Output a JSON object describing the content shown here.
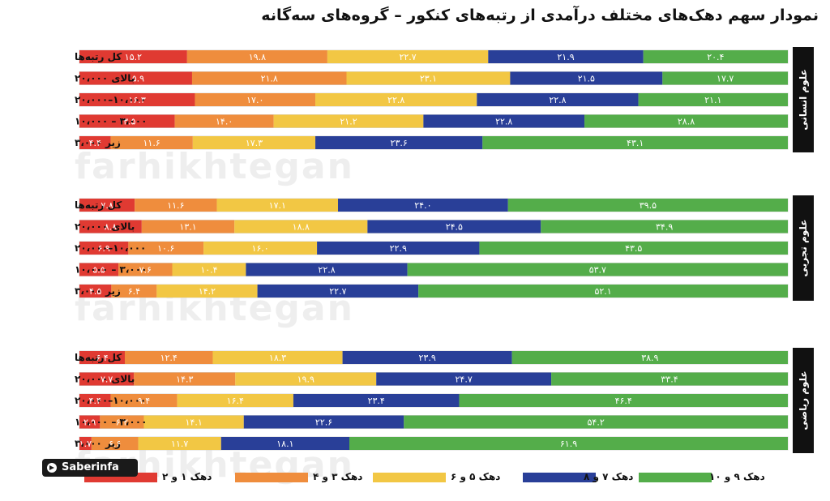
{
  "title": "نمودار سهم دهک‌های مختلف درآمدی از رتبه‌های کنکور – گروه‌های سه‌گانه",
  "brand": "Saberinfa",
  "watermark_text": "farhikhtegan",
  "colors": [
    "#e03a32",
    "#ef8d3d",
    "#f2c744",
    "#293f98",
    "#54ad4a"
  ],
  "chart_data": {
    "type": "bar",
    "stacked": true,
    "orientation": "horizontal",
    "xlim": [
      0,
      100
    ],
    "legend": {
      "placement": "bottom",
      "entries": [
        "دهک ۱ و ۲",
        "دهک ۳ و ۴",
        "دهک ۵ و ۶",
        "دهک ۷ و ۸",
        "دهک ۹ و ۱۰"
      ]
    },
    "groups": [
      {
        "name": "علوم انسانی",
        "rows": [
          {
            "label": "کل رتبه‌ها",
            "values": [
              15.2,
              19.8,
              22.7,
              21.9,
              20.4
            ],
            "labels": [
              "۱۵.۲",
              "۱۹.۸",
              "۲۲.۷",
              "۲۱.۹",
              "۲۰.۴"
            ]
          },
          {
            "label": "بالای ۲۰،۰۰۰",
            "values": [
              15.9,
              21.8,
              23.1,
              21.5,
              17.7
            ],
            "labels": [
              "۱۵.۹",
              "۲۱.۸",
              "۲۳.۱",
              "۲۱.۵",
              "۱۷.۷"
            ]
          },
          {
            "label": "۱۰،۰۰۰–۲۰،۰۰۰",
            "values": [
              16.3,
              17.0,
              22.8,
              22.8,
              21.1
            ],
            "labels": [
              "۱۶.۳",
              "۱۷.۰",
              "۲۲.۸",
              "۲۲.۸",
              "۲۱.۱"
            ]
          },
          {
            "label": "۳،۰۰۰ – ۱۰،۰۰۰",
            "values": [
              13.5,
              14.0,
              21.2,
              22.8,
              28.8
            ],
            "labels": [
              "۱۳.۵",
              "۱۴.۰",
              "۲۱.۲",
              "۲۲.۸",
              "۲۸.۸"
            ]
          },
          {
            "label": "زیر ۳،۰۰۰",
            "values": [
              4.4,
              11.6,
              17.3,
              23.6,
              43.1
            ],
            "labels": [
              "۴.۴",
              "۱۱.۶",
              "۱۷.۳",
              "۲۳.۶",
              "۴۳.۱"
            ]
          }
        ]
      },
      {
        "name": "علوم تجربی",
        "rows": [
          {
            "label": "کل رتبه‌ها",
            "values": [
              7.8,
              11.6,
              17.1,
              24.0,
              39.5
            ],
            "labels": [
              "۷.۸",
              "۱۱.۶",
              "۱۷.۱",
              "۲۴.۰",
              "۳۹.۵"
            ]
          },
          {
            "label": "بالای ۲۰،۰۰۰",
            "values": [
              8.8,
              13.1,
              18.8,
              24.5,
              34.9
            ],
            "labels": [
              "۸.۸",
              "۱۳.۱",
              "۱۸.۸",
              "۲۴.۵",
              "۳۴.۹"
            ]
          },
          {
            "label": "۱۰،۰۰۰–۲۰،۰۰۰",
            "values": [
              6.9,
              10.6,
              16.0,
              22.9,
              43.5
            ],
            "labels": [
              "۶.۹",
              "۱۰.۶",
              "۱۶.۰",
              "۲۲.۹",
              "۴۳.۵"
            ]
          },
          {
            "label": "۳،۰۰۰ – ۱۰،۰۰۰",
            "values": [
              5.5,
              7.6,
              10.4,
              22.8,
              53.7
            ],
            "labels": [
              "۵.۵",
              "۷.۶",
              "۱۰.۴",
              "۲۲.۸",
              "۵۳.۷"
            ]
          },
          {
            "label": "زیر ۳،۰۰۰",
            "values": [
              4.5,
              6.4,
              14.2,
              22.7,
              52.1
            ],
            "labels": [
              "۴.۵",
              "۶.۴",
              "۱۴.۲",
              "۲۲.۷",
              "۵۲.۱"
            ]
          }
        ]
      },
      {
        "name": "علوم ریاضی",
        "rows": [
          {
            "label": "کل رتبه‌ها",
            "values": [
              6.4,
              12.4,
              18.3,
              23.9,
              38.9
            ],
            "labels": [
              "۶.۴",
              "۱۲.۴",
              "۱۸.۳",
              "۲۳.۹",
              "۳۸.۹"
            ]
          },
          {
            "label": "بالای ۲۰،۰۰۰",
            "values": [
              7.7,
              14.3,
              19.9,
              24.7,
              33.4
            ],
            "labels": [
              "۷.۷",
              "۱۴.۳",
              "۱۹.۹",
              "۲۴.۷",
              "۳۳.۴"
            ]
          },
          {
            "label": "۱۰،۰۰۰–۲۰،۰۰۰",
            "values": [
              4.4,
              9.4,
              16.4,
              23.4,
              46.4
            ],
            "labels": [
              "۴.۴",
              "۹.۴",
              "۱۶.۴",
              "۲۳.۴",
              "۴۶.۴"
            ]
          },
          {
            "label": "۳،۰۰۰ – ۱۰،۰۰۰",
            "values": [
              2.9,
              6.2,
              14.1,
              22.6,
              54.2
            ],
            "labels": [
              "۲.۹",
              "۶.۲",
              "۱۴.۱",
              "۲۲.۶",
              "۵۴.۲"
            ]
          },
          {
            "label": "زیر ۳،۰۰۰",
            "values": [
              1.7,
              6.6,
              11.7,
              18.1,
              61.9
            ],
            "labels": [
              "۱.۷",
              "۶.۶",
              "۱۱.۷",
              "۱۸.۱",
              "۶۱.۹"
            ]
          }
        ]
      }
    ]
  }
}
